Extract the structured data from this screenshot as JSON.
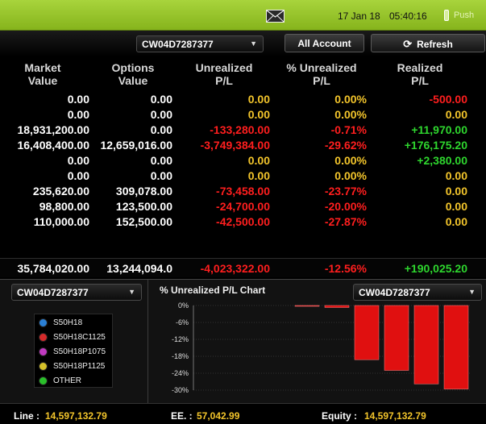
{
  "topbar": {
    "date": "17 Jan 18",
    "time": "05:40:16",
    "push_label": "Push"
  },
  "toolbar": {
    "account_select": "CW04D7287377",
    "all_account_label": "All Account",
    "refresh_label": "Refresh"
  },
  "table": {
    "headers": [
      [
        "Market",
        "Value"
      ],
      [
        "Options",
        "Value"
      ],
      [
        "Unrealized",
        "P/L"
      ],
      [
        "% Unrealized",
        "P/L"
      ],
      [
        "Realized",
        "P/L"
      ]
    ],
    "rows": [
      [
        "0.00",
        "0.00",
        "0.00",
        "0.00%",
        "-500.00"
      ],
      [
        "0.00",
        "0.00",
        "0.00",
        "0.00%",
        "0.00"
      ],
      [
        "18,931,200.00",
        "0.00",
        "-133,280.00",
        "-0.71%",
        "+11,970.00"
      ],
      [
        "16,408,400.00",
        "12,659,016.00",
        "-3,749,384.00",
        "-29.62%",
        "+176,175.20"
      ],
      [
        "0.00",
        "0.00",
        "0.00",
        "0.00%",
        "+2,380.00"
      ],
      [
        "0.00",
        "0.00",
        "0.00",
        "0.00%",
        "0.00"
      ],
      [
        "235,620.00",
        "309,078.00",
        "-73,458.00",
        "-23.77%",
        "0.00"
      ],
      [
        "98,800.00",
        "123,500.00",
        "-24,700.00",
        "-20.00%",
        "0.00"
      ],
      [
        "110,000.00",
        "152,500.00",
        "-42,500.00",
        "-27.87%",
        "0.00"
      ]
    ],
    "totals": [
      "35,784,020.00",
      "13,244,094.0",
      "-4,023,322.00",
      "-12.56%",
      "+190,025.20"
    ]
  },
  "colors": {
    "positive": "#2ed62e",
    "negative": "#ff1e1e",
    "zero": "#f3c52b",
    "plain": "#ffffff"
  },
  "lower": {
    "left_select": "CW04D7287377",
    "legend": [
      {
        "label": "S50H18",
        "color": "#2a7fd4"
      },
      {
        "label": "S50H18C1125",
        "color": "#d42a2a"
      },
      {
        "label": "S50H18P1075",
        "color": "#c03ac0"
      },
      {
        "label": "S50H18P1125",
        "color": "#d4c02a"
      },
      {
        "label": "OTHER",
        "color": "#2ac02a"
      }
    ],
    "chart_title": "% Unrealized P/L Chart",
    "chart_select": "CW04D7287377"
  },
  "chart_data": {
    "type": "bar",
    "title": "% Unrealized P/L Chart",
    "ylim": [
      -30,
      0
    ],
    "yticks": [
      "0%",
      "-6%",
      "-12%",
      "-18%",
      "-24%",
      "-30%"
    ],
    "ytick_values": [
      0,
      -6,
      -12,
      -18,
      -24,
      -30
    ],
    "values": [
      0,
      -0.71,
      -19.2,
      -23.0,
      -27.8,
      -29.6
    ],
    "bar_color": "#e01010",
    "grid": true
  },
  "footer": {
    "line_label": "Line :",
    "line_value": "14,597,132.79",
    "ee_label": "EE. :",
    "ee_value": "57,042.99",
    "equity_label": "Equity :",
    "equity_value": "14,597,132.79"
  }
}
